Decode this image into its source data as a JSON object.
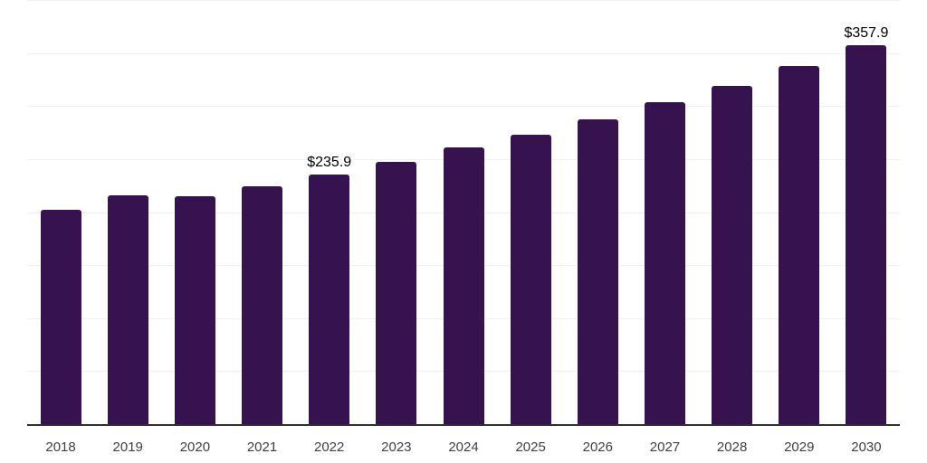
{
  "chart_data": {
    "type": "bar",
    "title": "",
    "xlabel": "",
    "ylabel": "",
    "categories": [
      "2018",
      "2019",
      "2020",
      "2021",
      "2022",
      "2023",
      "2024",
      "2025",
      "2026",
      "2027",
      "2028",
      "2029",
      "2030"
    ],
    "values": [
      203.0,
      216.4,
      215.7,
      225.1,
      235.9,
      248.2,
      261.8,
      273.8,
      288.3,
      304.4,
      319.9,
      338.6,
      357.9
    ],
    "data_labels": [
      "",
      "",
      "",
      "",
      "$235.9",
      "",
      "",
      "",
      "",
      "",
      "",
      "",
      "$357.9"
    ],
    "ylim": [
      0,
      400
    ],
    "gridline_step": 50,
    "grid": true,
    "legend": "none",
    "colors": {
      "bar": "#36134f",
      "gridline": "#f1f1f1",
      "axis": "#2f2f2f",
      "tick_label": "#404040",
      "data_label": "#000000",
      "background": "#ffffff"
    }
  }
}
